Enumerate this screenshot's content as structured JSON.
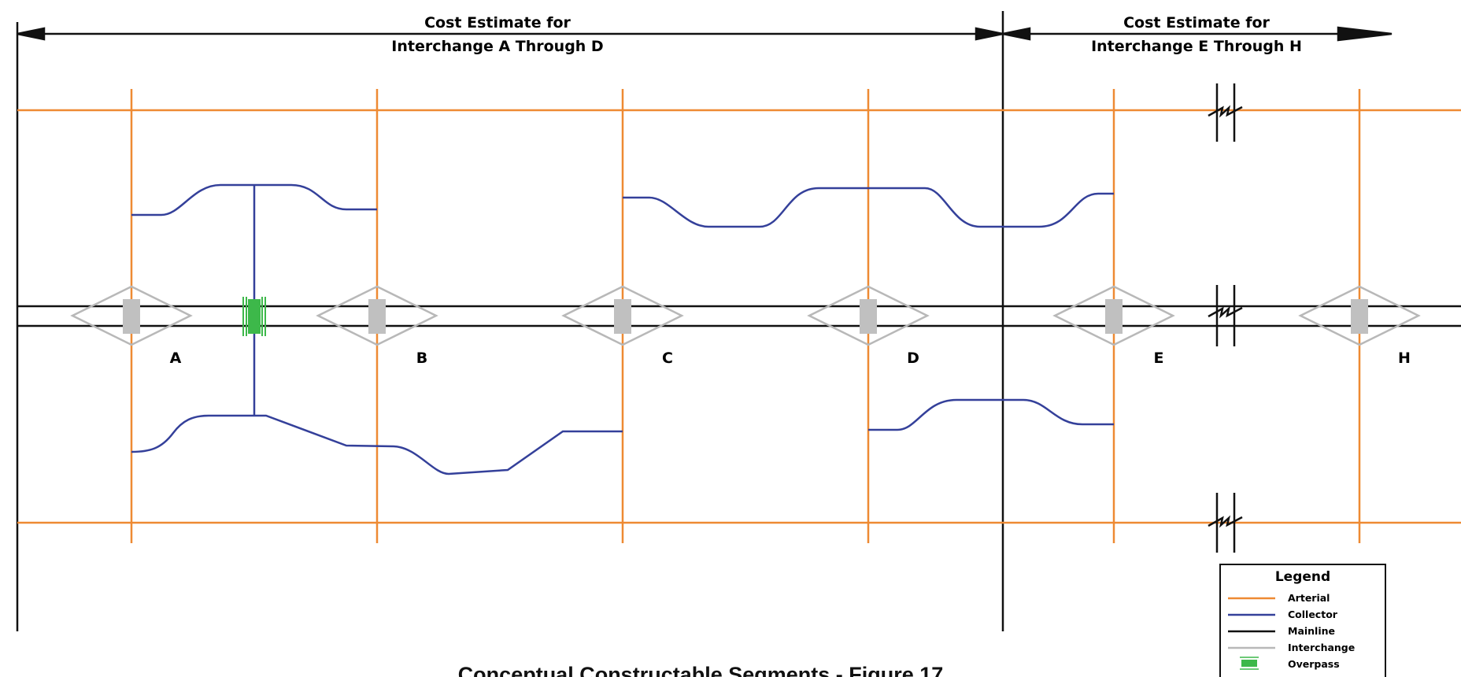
{
  "header": {
    "left_line1": "Cost Estimate  for",
    "left_line2": "Interchange  A  Through  D",
    "right_line1": "Cost Estimate  for",
    "right_line2": "Interchange  E  Through  H"
  },
  "interchanges": [
    "A",
    "B",
    "C",
    "D",
    "E",
    "H"
  ],
  "legend": {
    "title": "Legend",
    "items": [
      {
        "label": "Arterial",
        "color": "#ee8a33"
      },
      {
        "label": "Collector",
        "color": "#34409a"
      },
      {
        "label": "Mainline",
        "color": "#111111"
      },
      {
        "label": "Interchange",
        "color": "#b8b8b8"
      },
      {
        "label": "Overpass",
        "color": "#3db84a"
      }
    ]
  },
  "figure_title": "Conceptual Constructable Segments - Figure 17",
  "colors": {
    "arterial": "#ee8a33",
    "collector": "#34409a",
    "mainline": "#111111",
    "interchange": "#b8b8b8",
    "interchange_fill": "#c0c0c0",
    "overpass": "#3db84a"
  }
}
